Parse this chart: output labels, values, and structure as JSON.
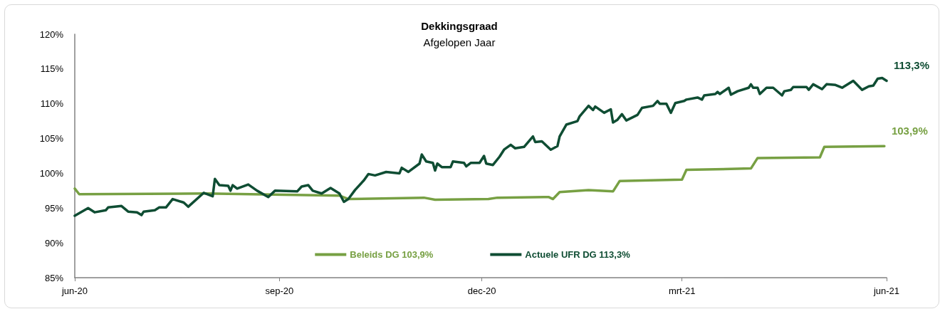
{
  "chart_data": {
    "type": "line",
    "title": "Dekkingsgraad",
    "subtitle": "Afgelopen Jaar",
    "xlim": [
      "2020-06-01",
      "2021-06-01"
    ],
    "xticks": [
      {
        "value": "2020-06-01",
        "label": "jun-20"
      },
      {
        "value": "2020-09-01",
        "label": "sep-20"
      },
      {
        "value": "2020-12-01",
        "label": "dec-20"
      },
      {
        "value": "2021-03-01",
        "label": "mrt-21"
      },
      {
        "value": "2021-06-01",
        "label": "jun-21"
      }
    ],
    "ylim": [
      85,
      120
    ],
    "yticks": [
      {
        "value": 85,
        "label": "85%"
      },
      {
        "value": 90,
        "label": "90%"
      },
      {
        "value": 95,
        "label": "95%"
      },
      {
        "value": 100,
        "label": "100%"
      },
      {
        "value": 105,
        "label": "105%"
      },
      {
        "value": 110,
        "label": "110%"
      },
      {
        "value": 115,
        "label": "115%"
      },
      {
        "value": 120,
        "label": "120%"
      }
    ],
    "grid": false,
    "legend": "bottom",
    "marker": "none",
    "line_style": "solid",
    "series": [
      {
        "name": "Beleids DG 103,9%",
        "color": "#77a043",
        "x": [
          "2020-06-01",
          "2020-06-03",
          "2020-07-30",
          "2020-09-08",
          "2020-09-28",
          "2020-10-02",
          "2020-11-05",
          "2020-11-10",
          "2020-12-04",
          "2020-12-08",
          "2020-12-31",
          "2021-01-02",
          "2021-01-05",
          "2021-01-18",
          "2021-01-29",
          "2021-02-01",
          "2021-03-01",
          "2021-03-03",
          "2021-04-01",
          "2021-04-04",
          "2021-05-02",
          "2021-05-04",
          "2021-05-31"
        ],
        "values": [
          97.8,
          97.0,
          97.1,
          96.9,
          96.8,
          96.3,
          96.5,
          96.2,
          96.3,
          96.5,
          96.6,
          96.3,
          97.3,
          97.6,
          97.4,
          98.9,
          99.1,
          100.5,
          100.7,
          102.2,
          102.3,
          103.8,
          103.9
        ]
      },
      {
        "name": "Actuele UFR DG 113,3%",
        "color": "#0f4d33",
        "x": [
          "2020-06-01",
          "2020-06-07",
          "2020-06-10",
          "2020-06-15",
          "2020-06-16",
          "2020-06-22",
          "2020-06-25",
          "2020-06-29",
          "2020-07-01",
          "2020-07-02",
          "2020-07-07",
          "2020-07-09",
          "2020-07-12",
          "2020-07-15",
          "2020-07-20",
          "2020-07-22",
          "2020-07-29",
          "2020-08-02",
          "2020-08-03",
          "2020-08-05",
          "2020-08-09",
          "2020-08-10",
          "2020-08-11",
          "2020-08-13",
          "2020-08-18",
          "2020-08-22",
          "2020-08-27",
          "2020-08-30",
          "2020-09-09",
          "2020-09-11",
          "2020-09-14",
          "2020-09-16",
          "2020-09-20",
          "2020-09-24",
          "2020-09-28",
          "2020-09-30",
          "2020-10-02",
          "2020-10-05",
          "2020-10-09",
          "2020-10-11",
          "2020-10-14",
          "2020-10-19",
          "2020-10-25",
          "2020-10-26",
          "2020-10-29",
          "2020-11-03",
          "2020-11-04",
          "2020-11-06",
          "2020-11-09",
          "2020-11-10",
          "2020-11-11",
          "2020-11-13",
          "2020-11-17",
          "2020-11-18",
          "2020-11-23",
          "2020-11-24",
          "2020-11-26",
          "2020-11-30",
          "2020-12-02",
          "2020-12-03",
          "2020-12-06",
          "2020-12-09",
          "2020-12-11",
          "2020-12-14",
          "2020-12-16",
          "2020-12-20",
          "2020-12-24",
          "2020-12-25",
          "2020-12-28",
          "2021-01-01",
          "2021-01-04",
          "2021-01-05",
          "2021-01-08",
          "2021-01-13",
          "2021-01-14",
          "2021-01-18",
          "2021-01-20",
          "2021-01-21",
          "2021-01-25",
          "2021-01-28",
          "2021-01-29",
          "2021-01-31",
          "2021-02-02",
          "2021-02-04",
          "2021-02-09",
          "2021-02-11",
          "2021-02-16",
          "2021-02-18",
          "2021-02-19",
          "2021-02-22",
          "2021-02-24",
          "2021-02-26",
          "2021-03-02",
          "2021-03-03",
          "2021-03-08",
          "2021-03-10",
          "2021-03-11",
          "2021-03-16",
          "2021-03-17",
          "2021-03-18",
          "2021-03-22",
          "2021-03-23",
          "2021-03-26",
          "2021-03-31",
          "2021-04-01",
          "2021-04-02",
          "2021-04-04",
          "2021-04-05",
          "2021-04-08",
          "2021-04-11",
          "2021-04-15",
          "2021-04-16",
          "2021-04-19",
          "2021-04-20",
          "2021-04-26",
          "2021-04-27",
          "2021-04-29",
          "2021-05-03",
          "2021-05-05",
          "2021-05-09",
          "2021-05-12",
          "2021-05-17",
          "2021-05-21",
          "2021-05-24",
          "2021-05-26",
          "2021-05-28",
          "2021-05-30",
          "2021-06-01"
        ],
        "values": [
          93.9,
          95.0,
          94.4,
          94.7,
          95.1,
          95.3,
          94.5,
          94.4,
          94.0,
          94.5,
          94.7,
          95.1,
          95.1,
          96.3,
          95.8,
          95.2,
          97.2,
          96.7,
          99.2,
          98.3,
          98.2,
          97.5,
          98.3,
          97.8,
          98.4,
          97.5,
          96.6,
          97.5,
          97.4,
          98.1,
          98.3,
          97.5,
          97.1,
          97.9,
          97.1,
          95.9,
          96.3,
          97.6,
          99.0,
          99.9,
          99.7,
          100.2,
          100.0,
          100.8,
          100.2,
          101.4,
          102.7,
          101.7,
          101.5,
          100.4,
          101.4,
          100.9,
          100.9,
          101.7,
          101.5,
          101.0,
          101.5,
          101.5,
          102.5,
          101.4,
          101.2,
          102.4,
          103.4,
          104.1,
          103.6,
          103.8,
          105.3,
          104.5,
          104.6,
          103.4,
          103.9,
          105.3,
          107.0,
          107.5,
          108.2,
          109.7,
          109.1,
          109.6,
          108.7,
          109.2,
          107.3,
          107.7,
          108.5,
          107.6,
          108.4,
          109.4,
          109.7,
          110.4,
          110.0,
          110.0,
          108.7,
          110.1,
          110.4,
          110.6,
          110.9,
          110.6,
          111.2,
          111.4,
          111.7,
          111.4,
          112.3,
          111.3,
          111.8,
          112.3,
          112.8,
          112.3,
          112.3,
          111.4,
          112.3,
          112.3,
          111.2,
          111.8,
          112.0,
          112.4,
          112.4,
          112.0,
          112.8,
          112.1,
          112.8,
          112.7,
          112.3,
          113.3,
          112.0,
          112.5,
          112.6,
          113.6,
          113.7,
          113.3
        ]
      }
    ],
    "annotations": [
      {
        "text": "103,9%",
        "x": "2021-05-31",
        "y": 103.9
      },
      {
        "text": "113,3%",
        "x": "2021-06-01",
        "y": 113.3
      }
    ]
  }
}
